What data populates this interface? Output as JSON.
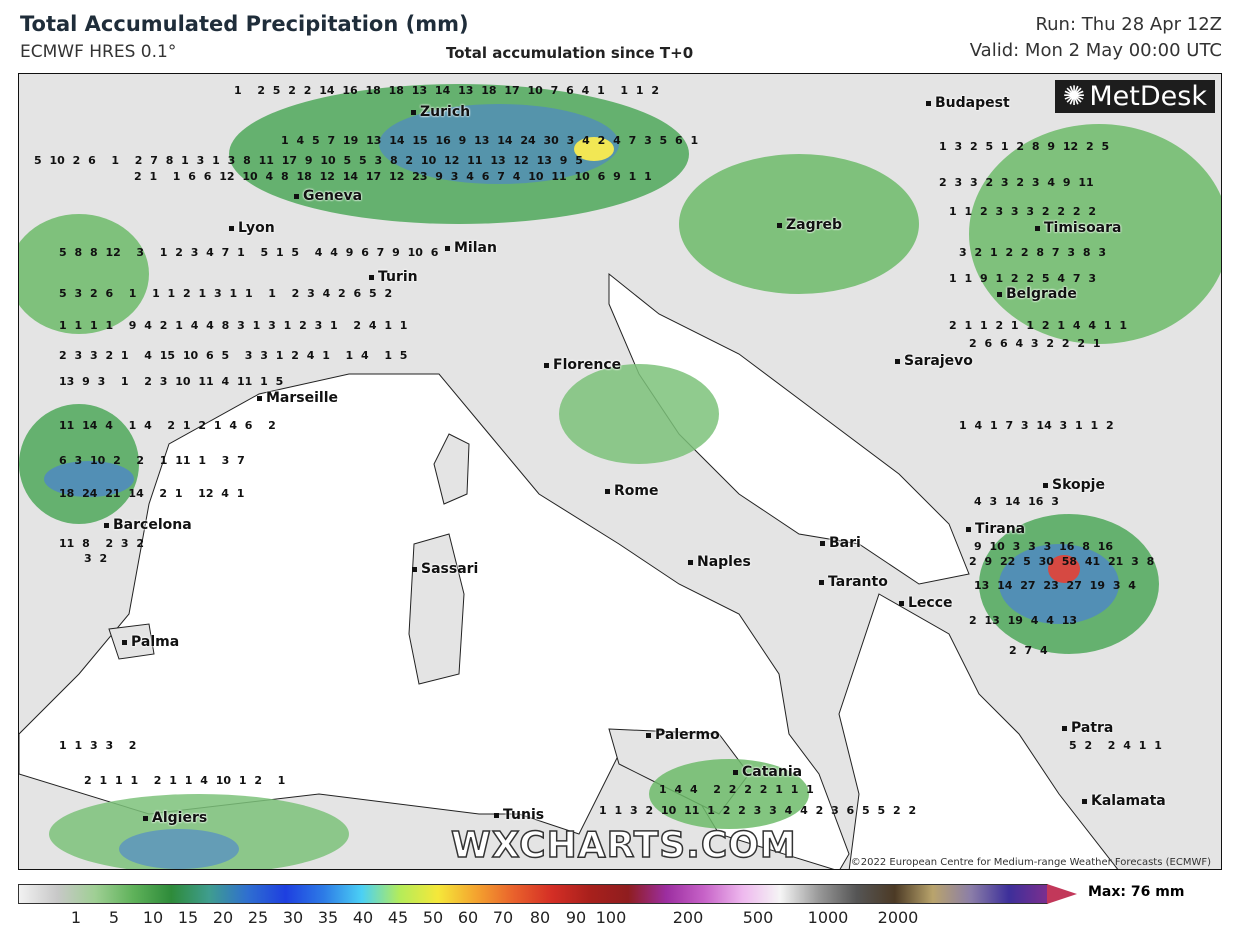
{
  "header": {
    "title": "Total Accumulated Precipitation (mm)",
    "model": "ECMWF HRES 0.1°",
    "subtitle": "Total accumulation since T+0",
    "run": "Run: Thu 28 Apr 12Z",
    "valid": "Valid: Mon 2 May 00:00 UTC"
  },
  "map": {
    "logo": "MetDesk",
    "watermark": "WXCHARTS.COM",
    "copyright": "©2022 European Centre for Medium-range Weather Forecasts (ECMWF)",
    "cities": [
      "Budapest",
      "Zurich",
      "Geneva",
      "Lyon",
      "Milan",
      "Turin",
      "Zagreb",
      "Timisoara",
      "Belgrade",
      "Sarajevo",
      "Florence",
      "Marseille",
      "Skopje",
      "Tirana",
      "Barcelona",
      "Rome",
      "Bari",
      "Naples",
      "Sassari",
      "Taranto",
      "Lecce",
      "Palma",
      "Palermo",
      "Patra",
      "Catania",
      "Kalamata",
      "Algiers",
      "Tunis"
    ],
    "value_rows": [
      "1  2 5 2 2 14 16 18 18 13 14 13 18 17 10 7 6 4 1  1 1 2",
      "1 4 5 7 19 13 14 15 16 9 13 14 24 30 3 4 2 4 7 3 5 6 1",
      "2 1  1 6 6 12 10 4 8 18 12 14 17 12 23 9 3 4 6 7 4 10 11 10 6 9 1 1",
      "5 10 2 6  1  2 7 8 1 3 1 3 8 11 17 9 10 5 5 3 8 2 10 12 11 13 12 13 9 5",
      "5 8 8 12  3  1 2 3 4 7 1  5 1 5  4 4 9 6 7 9 10 6",
      "5 3 2 6  1  1 1 2 1 3 1 1  1  2 3 4 2 6 5 2",
      "1 1 1 1  9 4 2 1 4 4 8 3 1 3 1 2 3 1  2 4 1 1",
      "2 3 3 2 1  4 15 10 6 5  3 3 1 2 4 1  1 4  1 5",
      "13 9 3  1  2 3 10 11 4 11 1 5",
      "11 14 4  1 4  2 1 2 1 4 6  2",
      "6 3 10 2  2  1 11 1  3 7",
      "18 24 21 14  2 1  12 4 1",
      "11 8  2 3 2",
      "3 2",
      "1 3 2 5 1 2 8 9 12 2 5",
      "2 3 3 2 3 2 3 4 9 11",
      "1 1 2 3 3 3 2 2 2 2",
      "3 2 1 2 2 8 7 3 8 3",
      "1 1 9 1 2 2 5 4 7 3",
      "2 1 1 2 1 1 2 1 4 4 1 1",
      "2 6 6 4 3 2 2 2 1",
      "1 4 1 7 3 14 3 1 1 2",
      "4 3 14 16 3",
      "9 10 3 3 3 16 8 16",
      "2 9 22 5 30 58 41 21 3 8",
      "13 14 27 23 27 19 3 4",
      "2 13 19 4 4 13",
      "2 7 4",
      "1 1 3 3  2",
      "2 1 1 1  2 1 1 4 10 1 2  1",
      "1 4 4  2 2 2 2 1 1 1",
      "1 1 3 2 10 11 1 2 2 3 3 4 4 2 3 6 5 5 2 2",
      "5 2  2 4 1 1"
    ]
  },
  "colorbar": {
    "ticks": [
      "1",
      "5",
      "10",
      "15",
      "20",
      "25",
      "30",
      "35",
      "40",
      "45",
      "50",
      "60",
      "70",
      "80",
      "90",
      "100",
      "200",
      "500",
      "1000",
      "2000"
    ],
    "max_label": "Max: 76 mm",
    "colors": [
      "#f2f2f2",
      "#c8c8c8",
      "#9fcf94",
      "#5fb25a",
      "#2e8b3a",
      "#3f9d8f",
      "#2f6fd0",
      "#1e3fe0",
      "#2d7be6",
      "#4bd0f5",
      "#b4ec5a",
      "#f5e83a",
      "#f4a42f",
      "#e9612c",
      "#d42e25",
      "#a8201c",
      "#8f1d1f",
      "#9c2ea0",
      "#c763c8",
      "#eeb8ee",
      "#f5f5f5",
      "#999999",
      "#555555",
      "#4c3a25",
      "#b9a46c",
      "#8b7ea8",
      "#3d2f9a",
      "#7b2f8f",
      "#c2385a"
    ]
  }
}
